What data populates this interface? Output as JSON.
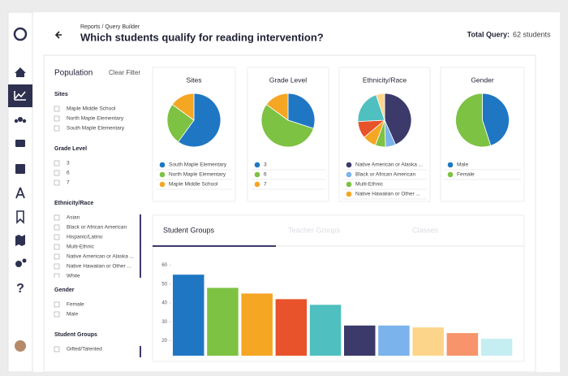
{
  "breadcrumb": "Reports / Query Builder",
  "title": "Which students qualify for reading intervention?",
  "total_query": {
    "label": "Total Query:",
    "value": "62 students"
  },
  "filters": {
    "title": "Population",
    "clear": "Clear Filter",
    "groups": [
      {
        "name": "Sites",
        "options": [
          "Maple Middle School",
          "North Maple Elementary",
          "South Maple Elementary"
        ]
      },
      {
        "name": "Grade Level",
        "options": [
          "3",
          "6",
          "7"
        ]
      },
      {
        "name": "Ethnicity/Race",
        "options": [
          "Asian",
          "Black or African American",
          "Hispanic/Latino",
          "Multi-Ethnic",
          "Native American or Alaska ...",
          "Native Hawaiian or Other ...",
          "White"
        ]
      },
      {
        "name": "Gender",
        "options": [
          "Female",
          "Male"
        ]
      },
      {
        "name": "Student Groups",
        "options": [
          "Gifted/Talented"
        ]
      }
    ]
  },
  "pies": [
    {
      "type": "pie",
      "title": "Sites",
      "categories": [
        "South Maple Elementary",
        "North Maple Elementary",
        "Maple Middle School"
      ],
      "values": [
        60,
        25,
        15
      ],
      "colors": [
        "#1f77c4",
        "#7dc242",
        "#f5a623"
      ]
    },
    {
      "type": "pie",
      "title": "Grade Level",
      "categories": [
        "3",
        "6",
        "7"
      ],
      "values": [
        30,
        55,
        15
      ],
      "colors": [
        "#1f77c4",
        "#7dc242",
        "#f5a623"
      ]
    },
    {
      "type": "pie",
      "title": "Ethnicity/Race",
      "categories": [
        "Native American or Alaska ...",
        "Black or African American",
        "Multi-Ethnic",
        "Native Hawaiian or Other ...",
        null,
        null,
        null
      ],
      "values": [
        42,
        6,
        6,
        8,
        10,
        20,
        5
      ],
      "colors": [
        "#3b3a6b",
        "#7bb3ec",
        "#7dc242",
        "#f5a623",
        "#e8532b",
        "#4fbfbf",
        "#fdd58a"
      ]
    },
    {
      "type": "pie",
      "title": "Gender",
      "categories": [
        "Male",
        "Female"
      ],
      "values": [
        45,
        55
      ],
      "colors": [
        "#1f77c4",
        "#7dc242"
      ]
    }
  ],
  "tabs": [
    "Student Groups",
    "Teacher Groups",
    "Classes"
  ],
  "bar_chart": {
    "type": "bar",
    "values": [
      55,
      48,
      45,
      42,
      39,
      28,
      28,
      27,
      24,
      21
    ],
    "colors": [
      "#1f77c4",
      "#7dc242",
      "#f5a623",
      "#e8532b",
      "#4fbfbf",
      "#3b3a6b",
      "#7bb3ec",
      "#fdd58a",
      "#f7946b",
      "#c5eef2"
    ],
    "ylim": [
      12,
      65
    ],
    "yticks": [
      20,
      30,
      40,
      50,
      60
    ]
  }
}
